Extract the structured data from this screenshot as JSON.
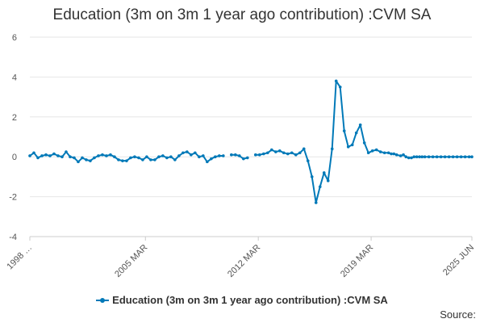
{
  "title": "Education (3m on 3m 1 year ago contribution) :CVM SA",
  "source_label": "Source:",
  "colors": {
    "series": "#0079b8",
    "grid": "#e6e6e6",
    "axis": "#cccccc"
  },
  "chart_data": {
    "type": "line",
    "title": "Education (3m on 3m 1 year ago contribution) :CVM SA",
    "xlabel": "",
    "ylabel": "",
    "ylim": [
      -4,
      6
    ],
    "yticks": [
      -4,
      -2,
      0,
      2,
      4,
      6
    ],
    "xlim": [
      "1998 Q1",
      "2025 JUN"
    ],
    "xticks": [
      "1998 …",
      "2005 MAR",
      "2012 MAR",
      "2019 MAR",
      "2025 JUN"
    ],
    "grid": true,
    "legend_position": "bottom",
    "series": [
      {
        "name": "Education (3m on 3m 1 year ago contribution) :CVM SA",
        "x": [
          1998.0,
          1998.25,
          1998.5,
          1998.75,
          1999.0,
          1999.25,
          1999.5,
          1999.75,
          2000.0,
          2000.25,
          2000.5,
          2000.75,
          2001.0,
          2001.25,
          2001.5,
          2001.75,
          2002.0,
          2002.25,
          2002.5,
          2002.75,
          2003.0,
          2003.25,
          2003.5,
          2003.75,
          2004.0,
          2004.25,
          2004.5,
          2004.75,
          2005.0,
          2005.25,
          2005.5,
          2005.75,
          2006.0,
          2006.25,
          2006.5,
          2006.75,
          2007.0,
          2007.25,
          2007.5,
          2007.75,
          2008.0,
          2008.25,
          2008.5,
          2008.75,
          2009.0,
          2009.25,
          2009.5,
          2009.75,
          2010.0,
          2010.25,
          2010.5,
          2010.75,
          2011.0,
          2011.25,
          2011.5,
          2011.75,
          2012.0,
          2012.25,
          2012.5,
          2012.75,
          2013.0,
          2013.25,
          2013.5,
          2013.75,
          2014.0,
          2014.25,
          2014.5,
          2014.75,
          2015.0,
          2015.25,
          2015.5,
          2015.75,
          2016.0,
          2016.25,
          2016.5,
          2016.75,
          2017.0,
          2017.25,
          2017.5,
          2017.75,
          2018.0,
          2018.25,
          2018.5,
          2018.75,
          2019.0,
          2019.25,
          2019.5,
          2019.75,
          2020.0,
          2020.25,
          2020.42,
          2020.58,
          2020.75,
          2021.0,
          2021.17,
          2021.33,
          2021.5,
          2021.67,
          2021.83,
          2022.0,
          2022.17,
          2022.33,
          2022.5,
          2022.75,
          2023.0,
          2023.25,
          2023.5,
          2023.75,
          2024.0,
          2024.25,
          2024.5,
          2024.75,
          2025.0,
          2025.25,
          2025.42
        ],
        "values": [
          0.05,
          0.2,
          -0.05,
          0.05,
          0.1,
          0.05,
          0.15,
          0.05,
          0.0,
          0.25,
          0.0,
          -0.05,
          -0.25,
          -0.05,
          -0.15,
          -0.2,
          -0.05,
          0.05,
          0.1,
          0.05,
          0.1,
          0.0,
          -0.15,
          -0.2,
          -0.2,
          -0.05,
          0.0,
          -0.05,
          -0.15,
          0.0,
          -0.15,
          -0.15,
          0.0,
          0.05,
          -0.05,
          0.0,
          -0.15,
          0.05,
          0.2,
          0.25,
          0.1,
          0.2,
          0.0,
          0.05,
          -0.25,
          -0.1,
          0.0,
          0.05,
          0.05,
          null,
          0.1,
          0.1,
          0.05,
          -0.1,
          -0.05,
          null,
          0.1,
          0.1,
          0.15,
          0.2,
          0.35,
          0.25,
          0.3,
          0.2,
          0.15,
          0.2,
          0.1,
          0.2,
          0.4,
          -0.2,
          -1.0,
          -2.3,
          -1.5,
          -0.8,
          -1.2,
          0.4,
          3.8,
          3.5,
          1.3,
          0.5,
          0.6,
          1.2,
          1.6,
          0.7,
          0.2,
          0.3,
          0.35,
          0.25,
          0.2,
          0.2,
          0.15,
          0.15,
          0.1,
          0.05,
          0.1,
          0.0,
          -0.05,
          -0.05,
          0.0,
          0.0,
          0.0,
          0.0,
          0.0,
          0.0,
          0.0,
          0.0,
          0.0,
          0.0,
          0.0,
          0.0,
          0.0,
          0.0,
          0.0,
          0.0,
          0.0
        ]
      }
    ]
  }
}
